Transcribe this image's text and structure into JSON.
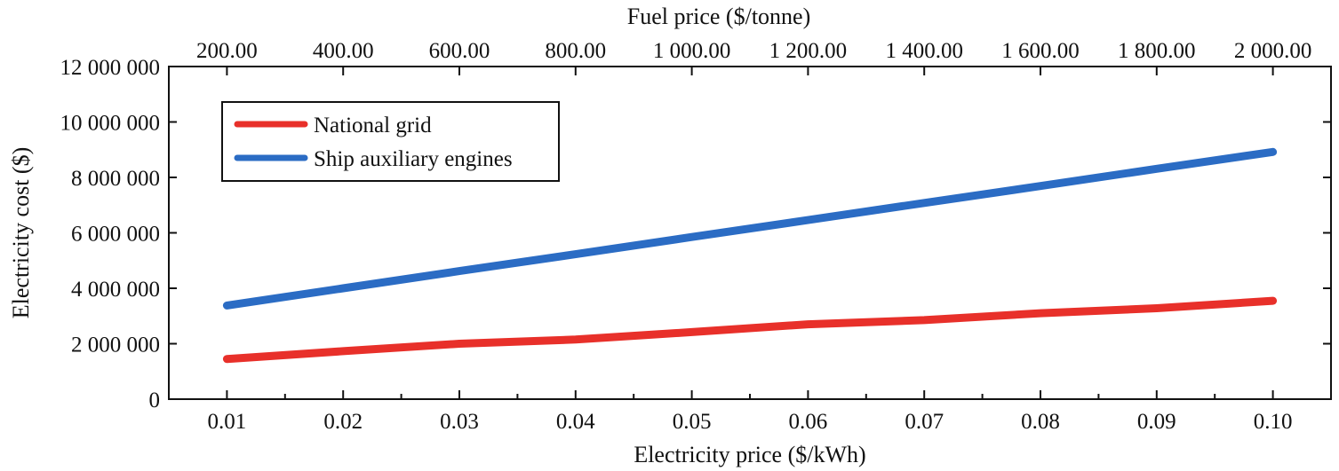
{
  "chart_data": {
    "type": "line",
    "title": "",
    "xlabel": "Electricity price ($/kWh)",
    "x2label": "Fuel price ($/tonne)",
    "ylabel": "Electricity cost ($)",
    "x": [
      0.01,
      0.02,
      0.03,
      0.04,
      0.05,
      0.06,
      0.07,
      0.08,
      0.09,
      0.1
    ],
    "x_tick_labels": [
      "0.01",
      "0.02",
      "0.03",
      "0.04",
      "0.05",
      "0.06",
      "0.07",
      "0.08",
      "0.09",
      "0.10"
    ],
    "x2_tick_labels": [
      "200.00",
      "400.00",
      "600.00",
      "800.00",
      "1 000.00",
      "1 200.00",
      "1 400.00",
      "1 600.00",
      "1 800.00",
      "2 000.00"
    ],
    "y_ticks": [
      0,
      2000000,
      4000000,
      6000000,
      8000000,
      10000000,
      12000000
    ],
    "y_tick_labels": [
      "0",
      "2 000 000",
      "4 000 000",
      "6 000 000",
      "8 000 000",
      "10 000 000",
      "12 000 000"
    ],
    "xlim": [
      0.005,
      0.105
    ],
    "ylim": [
      0,
      12000000
    ],
    "legend_position": "top-left",
    "series": [
      {
        "name": "National grid",
        "color": "#e8302a",
        "values": [
          1450000,
          1730000,
          2000000,
          2150000,
          2420000,
          2700000,
          2850000,
          3100000,
          3280000,
          3550000
        ]
      },
      {
        "name": "Ship auxiliary engines",
        "color": "#2b6cc4",
        "values": [
          3380000,
          4000000,
          4620000,
          5230000,
          5850000,
          6460000,
          7080000,
          7690000,
          8310000,
          8920000
        ]
      }
    ]
  }
}
